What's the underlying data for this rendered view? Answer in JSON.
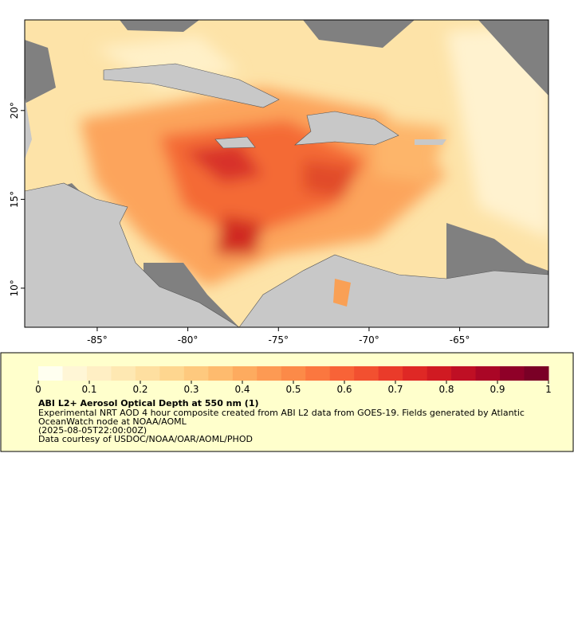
{
  "map": {
    "xlim": [
      -89,
      -60.1
    ],
    "ylim": [
      7.8,
      25.1
    ],
    "xticks": [
      {
        "value": -85,
        "label": "-85°"
      },
      {
        "value": -80,
        "label": "-80°"
      },
      {
        "value": -75,
        "label": "-75°"
      },
      {
        "value": -70,
        "label": "-70°"
      },
      {
        "value": -65,
        "label": "-65°"
      }
    ],
    "yticks": [
      {
        "value": 10,
        "label": "10°"
      },
      {
        "value": 15,
        "label": "15°"
      },
      {
        "value": 20,
        "label": "20°"
      }
    ]
  },
  "colorbar": {
    "lim": [
      0,
      1
    ],
    "ticks": [
      0,
      0.1,
      0.2,
      0.3,
      0.4,
      0.5,
      0.6,
      0.7,
      0.8,
      0.9,
      1
    ],
    "colors": [
      "#fffff0",
      "#fff6d6",
      "#ffefc4",
      "#fee8b2",
      "#fedfa0",
      "#fed68f",
      "#fec97e",
      "#febb6e",
      "#fdab5f",
      "#fd9a53",
      "#fc8a48",
      "#fb773f",
      "#f86337",
      "#f25030",
      "#ea3b2a",
      "#df2825",
      "#d01a22",
      "#bf0f24",
      "#aa0626",
      "#8f0028",
      "#7a0026"
    ]
  },
  "legend": {
    "title": "ABI L2+ Aerosol Optical Depth at 550 nm (1)",
    "lines": [
      "Experimental NRT AOD 4 hour composite created from ABI L2 data from GOES-19. Fields generated by Atlantic",
      "OceanWatch node at NOAA/AOML",
      "(2025-08-05T22:00:00Z)",
      "Data courtesy of USDOC/NOAA/OAR/AOML/PHOD"
    ]
  }
}
